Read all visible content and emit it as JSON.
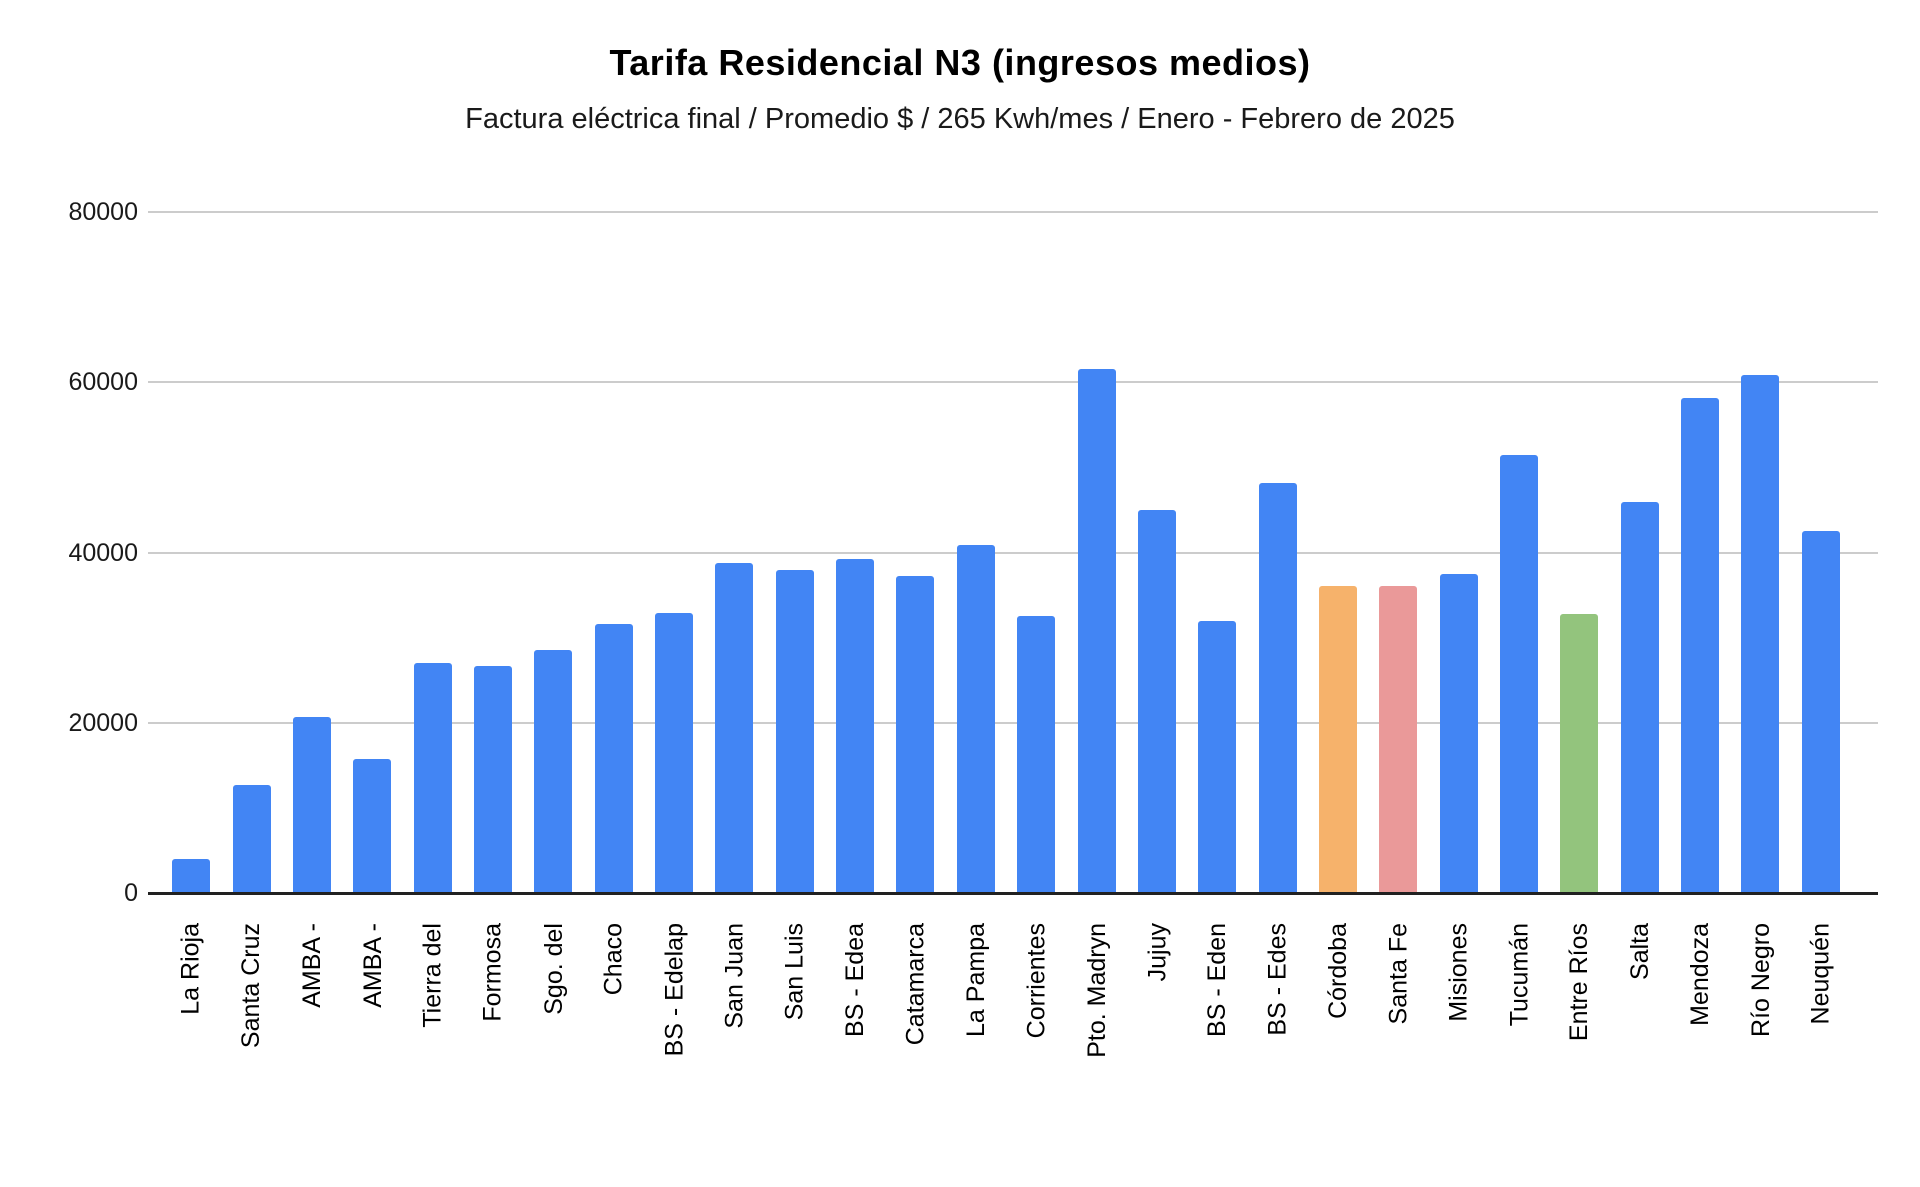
{
  "chart_data": {
    "type": "bar",
    "title": "Tarifa Residencial N3 (ingresos medios)",
    "subtitle": "Factura eléctrica final / Promedio $ / 265 Kwh/mes / Enero - Febrero de 2025",
    "xlabel": "",
    "ylabel": "",
    "ylim": [
      0,
      80000
    ],
    "yticks": [
      0,
      20000,
      40000,
      60000,
      80000
    ],
    "grid": true,
    "legend": "none",
    "categories": [
      "La Rioja",
      "Santa Cruz",
      "AMBA -",
      "AMBA -",
      "Tierra del",
      "Formosa",
      "Sgo. del",
      "Chaco",
      "BS - Edelap",
      "San Juan",
      "San Luis",
      "BS - Edea",
      "Catamarca",
      "La Pampa",
      "Corrientes",
      "Pto. Madryn",
      "Jujuy",
      "BS - Eden",
      "BS - Edes",
      "Córdoba",
      "Santa Fe",
      "Misiones",
      "Tucumán",
      "Entre Ríos",
      "Salta",
      "Mendoza",
      "Río Negro",
      "Neuquén"
    ],
    "values": [
      4000,
      12700,
      20700,
      15800,
      27000,
      26700,
      28500,
      31600,
      32900,
      38800,
      37900,
      39200,
      37200,
      40900,
      32500,
      61600,
      45000,
      31900,
      48200,
      36100,
      36100,
      37500,
      51400,
      32800,
      45900,
      58200,
      60800,
      42500
    ],
    "colors": {
      "default": "#4285F4",
      "highlights": [
        {
          "index": 19,
          "category": "Córdoba",
          "color": "#F6B26B"
        },
        {
          "index": 20,
          "category": "Santa Fe",
          "color": "#EA9999"
        },
        {
          "index": 23,
          "category": "Entre Ríos",
          "color": "#93C47D"
        }
      ]
    }
  }
}
